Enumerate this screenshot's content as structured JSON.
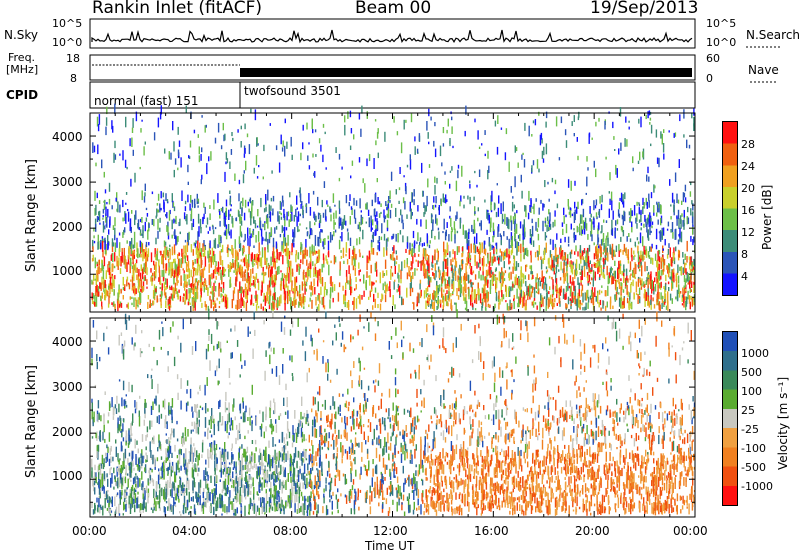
{
  "header": {
    "station": "Rankin Inlet (fitACF)",
    "beam": "Beam 00",
    "date": "19/Sep/2013"
  },
  "top_panels": {
    "nsky_label": "N.Sky",
    "nsky_ticks": [
      "10^5",
      "10^0"
    ],
    "nsearch_label": "N.Search",
    "freq_label_1": "Freq.",
    "freq_label_2": "[MHz]",
    "freq_ticks": [
      "18",
      "8"
    ],
    "nave_label": "Nave",
    "nave_ticks": [
      "60",
      "0"
    ],
    "cpid_label": "CPID",
    "cpid_segments": [
      "normal (fast) 151",
      "twofsound 3501"
    ]
  },
  "chart_data": [
    {
      "type": "heatmap",
      "name": "power",
      "ylabel": "Slant Range [km]",
      "y_ticks": [
        "1000",
        "2000",
        "3000",
        "4000"
      ],
      "ylim": [
        180,
        4500
      ],
      "colorbar_label": "Power [dB]",
      "colorbar_ticks": [
        "4",
        "8",
        "12",
        "16",
        "20",
        "24",
        "28"
      ],
      "colorbar_colors": [
        "#1414ff",
        "#2b55b8",
        "#3c8c78",
        "#6cbf48",
        "#c9d02c",
        "#f0a020",
        "#f06010",
        "#ff1010"
      ]
    },
    {
      "type": "heatmap",
      "name": "velocity",
      "ylabel": "Slant Range [km]",
      "y_ticks": [
        "1000",
        "2000",
        "3000",
        "4000"
      ],
      "ylim": [
        180,
        4500
      ],
      "colorbar_label": "Velocity [m s⁻¹]",
      "colorbar_ticks": [
        "1000",
        "500",
        "100",
        "25",
        "-25",
        "-100",
        "-500",
        "-1000"
      ],
      "colorbar_colors": [
        "#2050b8",
        "#2f6f8c",
        "#3a8a5a",
        "#5aac30",
        "#c8c8c0",
        "#f0a040",
        "#f08020",
        "#f05010",
        "#ff1010"
      ]
    }
  ],
  "x_axis": {
    "label": "Time UT",
    "ticks": [
      "00:00",
      "04:00",
      "08:00",
      "12:00",
      "16:00",
      "20:00",
      "00:00"
    ]
  }
}
